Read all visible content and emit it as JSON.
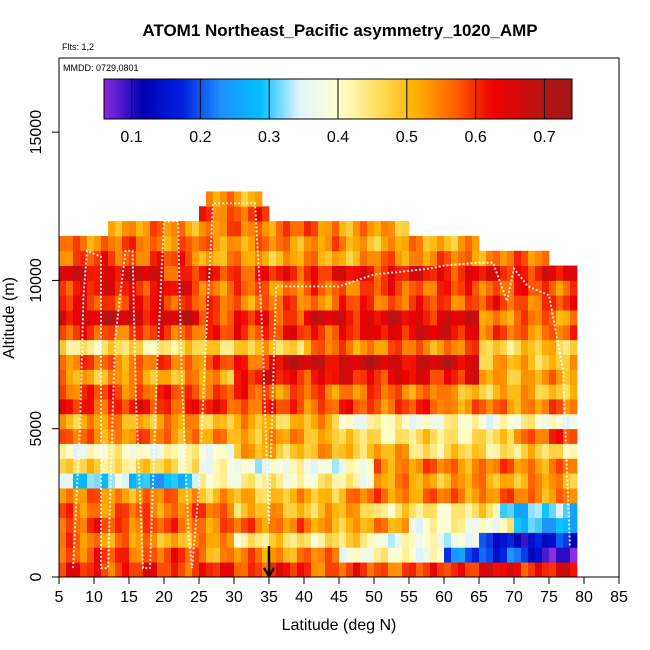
{
  "chart_data": {
    "type": "heatmap",
    "title": "ATOM1 Northeast_Pacific asymmetry_1020_AMP",
    "flights_note": "Flts: 1,2",
    "date_note": "MMDD: 0729,0801",
    "xlabel": "Latitude (deg N)",
    "ylabel": "Altitude (m)",
    "xlim": [
      5,
      85
    ],
    "ylim": [
      0,
      17500
    ],
    "x_ticks": [
      "5",
      "10",
      "15",
      "20",
      "25",
      "30",
      "35",
      "40",
      "45",
      "50",
      "55",
      "60",
      "65",
      "70",
      "75",
      "80",
      "85"
    ],
    "y_ticks": [
      "0",
      "5000",
      "10000",
      "15000"
    ],
    "colorbar": {
      "range": [
        0.06,
        0.74
      ],
      "ticks": [
        "0.1",
        "0.2",
        "0.3",
        "0.4",
        "0.5",
        "0.6",
        "0.7"
      ],
      "colors": [
        "#8a2be2",
        "#0000b0",
        "#0020e0",
        "#1e90ff",
        "#00bfff",
        "#e0f4ff",
        "#ffffd0",
        "#ffe060",
        "#ffb000",
        "#ff6000",
        "#ee0000",
        "#c01010",
        "#a01818"
      ]
    },
    "altitude_bin_m": 500,
    "latitude_bin_deg": 1,
    "profile_bins": [
      {
        "alt": 250,
        "values": [
          {
            "lat": [
              5,
              40
            ],
            "value": 0.6
          },
          {
            "lat": [
              40,
              60
            ],
            "value": 0.58
          },
          {
            "lat": [
              60,
              79
            ],
            "value": 0.62
          }
        ]
      },
      {
        "alt": 750,
        "values": [
          {
            "lat": [
              5,
              25
            ],
            "value": 0.58
          },
          {
            "lat": [
              25,
              45
            ],
            "value": 0.54
          },
          {
            "lat": [
              45,
              60
            ],
            "value": 0.4
          },
          {
            "lat": [
              60,
              72
            ],
            "value": 0.2
          },
          {
            "lat": [
              72,
              79
            ],
            "value": 0.1
          }
        ]
      },
      {
        "alt": 1250,
        "values": [
          {
            "lat": [
              5,
              15
            ],
            "value": 0.55
          },
          {
            "lat": [
              15,
              30
            ],
            "value": 0.52
          },
          {
            "lat": [
              30,
              50
            ],
            "value": 0.45
          },
          {
            "lat": [
              50,
              65
            ],
            "value": 0.38
          },
          {
            "lat": [
              65,
              79
            ],
            "value": 0.15
          }
        ]
      },
      {
        "alt": 1750,
        "values": [
          {
            "lat": [
              5,
              20
            ],
            "value": 0.58
          },
          {
            "lat": [
              20,
              40
            ],
            "value": 0.56
          },
          {
            "lat": [
              40,
              55
            ],
            "value": 0.52
          },
          {
            "lat": [
              55,
              70
            ],
            "value": 0.4
          },
          {
            "lat": [
              70,
              79
            ],
            "value": 0.28
          }
        ]
      },
      {
        "alt": 2250,
        "values": [
          {
            "lat": [
              5,
              30
            ],
            "value": 0.56
          },
          {
            "lat": [
              30,
              50
            ],
            "value": 0.5
          },
          {
            "lat": [
              50,
              68
            ],
            "value": 0.44
          },
          {
            "lat": [
              68,
              79
            ],
            "value": 0.3
          }
        ]
      },
      {
        "alt": 2750,
        "values": [
          {
            "lat": [
              5,
              25
            ],
            "value": 0.54
          },
          {
            "lat": [
              25,
              45
            ],
            "value": 0.5
          },
          {
            "lat": [
              45,
              79
            ],
            "value": 0.55
          }
        ]
      },
      {
        "alt": 3250,
        "values": [
          {
            "lat": [
              5,
              15
            ],
            "value": 0.32
          },
          {
            "lat": [
              15,
              25
            ],
            "value": 0.28
          },
          {
            "lat": [
              25,
              50
            ],
            "value": 0.42
          },
          {
            "lat": [
              50,
              79
            ],
            "value": 0.52
          }
        ]
      },
      {
        "alt": 3750,
        "values": [
          {
            "lat": [
              5,
              25
            ],
            "value": 0.46
          },
          {
            "lat": [
              25,
              50
            ],
            "value": 0.38
          },
          {
            "lat": [
              50,
              79
            ],
            "value": 0.55
          }
        ]
      },
      {
        "alt": 4250,
        "values": [
          {
            "lat": [
              5,
              30
            ],
            "value": 0.4
          },
          {
            "lat": [
              30,
              55
            ],
            "value": 0.5
          },
          {
            "lat": [
              55,
              79
            ],
            "value": 0.46
          }
        ]
      },
      {
        "alt": 4750,
        "values": [
          {
            "lat": [
              5,
              25
            ],
            "value": 0.55
          },
          {
            "lat": [
              25,
              45
            ],
            "value": 0.52
          },
          {
            "lat": [
              45,
              70
            ],
            "value": 0.45
          },
          {
            "lat": [
              70,
              79
            ],
            "value": 0.58
          }
        ]
      },
      {
        "alt": 5250,
        "values": [
          {
            "lat": [
              5,
              25
            ],
            "value": 0.52
          },
          {
            "lat": [
              25,
              45
            ],
            "value": 0.5
          },
          {
            "lat": [
              45,
              79
            ],
            "value": 0.4
          }
        ]
      },
      {
        "alt": 5750,
        "values": [
          {
            "lat": [
              5,
              30
            ],
            "value": 0.6
          },
          {
            "lat": [
              30,
              60
            ],
            "value": 0.58
          },
          {
            "lat": [
              60,
              79
            ],
            "value": 0.55
          }
        ]
      },
      {
        "alt": 6250,
        "values": [
          {
            "lat": [
              5,
              35
            ],
            "value": 0.58
          },
          {
            "lat": [
              35,
              60
            ],
            "value": 0.56
          },
          {
            "lat": [
              60,
              79
            ],
            "value": 0.5
          }
        ]
      },
      {
        "alt": 6750,
        "values": [
          {
            "lat": [
              5,
              30
            ],
            "value": 0.52
          },
          {
            "lat": [
              30,
              65
            ],
            "value": 0.62
          },
          {
            "lat": [
              65,
              79
            ],
            "value": 0.52
          }
        ]
      },
      {
        "alt": 7250,
        "values": [
          {
            "lat": [
              5,
              25
            ],
            "value": 0.56
          },
          {
            "lat": [
              25,
              35
            ],
            "value": 0.58
          },
          {
            "lat": [
              35,
              65
            ],
            "value": 0.66
          },
          {
            "lat": [
              65,
              79
            ],
            "value": 0.5
          }
        ]
      },
      {
        "alt": 7750,
        "values": [
          {
            "lat": [
              5,
              25
            ],
            "value": 0.45
          },
          {
            "lat": [
              25,
              40
            ],
            "value": 0.48
          },
          {
            "lat": [
              40,
              65
            ],
            "value": 0.55
          },
          {
            "lat": [
              65,
              79
            ],
            "value": 0.48
          }
        ]
      },
      {
        "alt": 8250,
        "values": [
          {
            "lat": [
              5,
              30
            ],
            "value": 0.58
          },
          {
            "lat": [
              30,
              50
            ],
            "value": 0.6
          },
          {
            "lat": [
              50,
              65
            ],
            "value": 0.64
          },
          {
            "lat": [
              65,
              79
            ],
            "value": 0.56
          }
        ]
      },
      {
        "alt": 8750,
        "values": [
          {
            "lat": [
              5,
              25
            ],
            "value": 0.66
          },
          {
            "lat": [
              25,
              40
            ],
            "value": 0.6
          },
          {
            "lat": [
              40,
              65
            ],
            "value": 0.64
          },
          {
            "lat": [
              65,
              79
            ],
            "value": 0.55
          }
        ]
      },
      {
        "alt": 9250,
        "values": [
          {
            "lat": [
              5,
              25
            ],
            "value": 0.6
          },
          {
            "lat": [
              25,
              45
            ],
            "value": 0.56
          },
          {
            "lat": [
              45,
              79
            ],
            "value": 0.58
          }
        ]
      },
      {
        "alt": 9750,
        "values": [
          {
            "lat": [
              5,
              25
            ],
            "value": 0.62
          },
          {
            "lat": [
              25,
              45
            ],
            "value": 0.56
          },
          {
            "lat": [
              45,
              79
            ],
            "value": 0.58
          }
        ]
      },
      {
        "alt": 10250,
        "values": [
          {
            "lat": [
              5,
              20
            ],
            "value": 0.65
          },
          {
            "lat": [
              20,
              40
            ],
            "value": 0.6
          },
          {
            "lat": [
              40,
              79
            ],
            "value": 0.62
          }
        ]
      },
      {
        "alt": 10750,
        "values": [
          {
            "lat": [
              5,
              25
            ],
            "value": 0.58
          },
          {
            "lat": [
              25,
              50
            ],
            "value": 0.52
          },
          {
            "lat": [
              50,
              75
            ],
            "value": 0.55
          }
        ]
      },
      {
        "alt": 11250,
        "values": [
          {
            "lat": [
              5,
              25
            ],
            "value": 0.56
          },
          {
            "lat": [
              25,
              45
            ],
            "value": 0.54
          },
          {
            "lat": [
              45,
              65
            ],
            "value": 0.52
          }
        ]
      },
      {
        "alt": 11750,
        "values": [
          {
            "lat": [
              12,
              30
            ],
            "value": 0.54
          },
          {
            "lat": [
              30,
              45
            ],
            "value": 0.56
          },
          {
            "lat": [
              45,
              55
            ],
            "value": 0.52
          }
        ]
      },
      {
        "alt": 12250,
        "values": [
          {
            "lat": [
              25,
              35
            ],
            "value": 0.58
          }
        ]
      },
      {
        "alt": 12750,
        "values": [
          {
            "lat": [
              26,
              34
            ],
            "value": 0.52
          }
        ]
      }
    ],
    "marker": {
      "type": "arrow-down",
      "lat": 35,
      "alt": 500
    }
  }
}
